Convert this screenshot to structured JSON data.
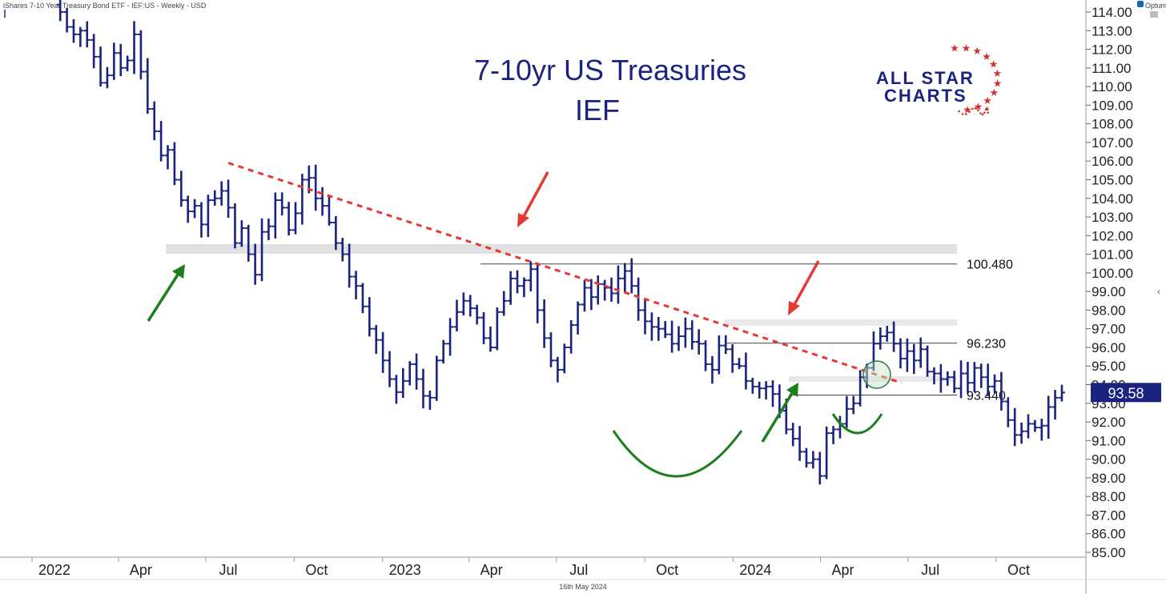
{
  "header": {
    "instrument": "iShares 7-10 Year Treasury Bond ETF - IEF:US - Weekly - USD",
    "vendor": "Optuma"
  },
  "footer": {
    "date": "16th May 2024"
  },
  "logo": {
    "line1": "ALL STAR",
    "line2": "CHARTS",
    "star_color": "#d32f2f",
    "text_color": "#1a237e"
  },
  "chart_data": {
    "type": "ohlc-bar",
    "title": "7-10yr US Treasuries",
    "subtitle": "IEF",
    "x_ticks": [
      "2022",
      "Apr",
      "Jul",
      "Oct",
      "2023",
      "Apr",
      "Jul",
      "Oct",
      "2024",
      "Apr",
      "Jul",
      "Oct"
    ],
    "y_ticks": [
      "114.00",
      "113.00",
      "112.00",
      "111.00",
      "110.00",
      "109.00",
      "108.00",
      "107.00",
      "106.00",
      "105.00",
      "104.00",
      "103.00",
      "102.00",
      "101.00",
      "100.00",
      "99.00",
      "98.00",
      "97.00",
      "96.00",
      "95.00",
      "94.00",
      "93.00",
      "92.00",
      "91.00",
      "90.00",
      "89.00",
      "88.00",
      "87.00",
      "86.00",
      "85.00"
    ],
    "ylim": [
      85,
      114
    ],
    "x_range": [
      "2022-01-01",
      "2024-10-01"
    ],
    "last_price": "93.58",
    "levels": [
      {
        "value": 100.48,
        "label": "100.480"
      },
      {
        "value": 96.23,
        "label": "96.230"
      },
      {
        "value": 93.44,
        "label": "93.440"
      }
    ],
    "trendline": {
      "start": [
        "2022-07-01",
        105.9
      ],
      "end": [
        "2024-06-01",
        94.1
      ]
    },
    "series": [
      {
        "values": [
          114.0,
          113.2,
          112.8,
          113.0,
          112.5,
          111.6,
          110.2,
          110.6,
          111.8,
          111.0,
          111.4,
          112.8,
          110.8,
          108.8,
          107.6,
          106.3,
          106.6,
          105.0,
          103.9,
          103.3,
          103.6,
          102.6,
          103.9,
          104.0,
          104.4,
          103.5,
          101.6,
          102.4,
          101.0,
          99.9,
          102.2,
          102.5,
          103.9,
          103.5,
          102.3,
          103.2,
          105.0,
          105.1,
          104.0,
          103.6,
          102.7,
          101.6,
          101.0,
          99.8,
          99.3,
          98.2,
          97.0,
          96.4,
          95.3,
          94.3,
          93.6,
          94.2,
          95.1,
          94.3,
          93.4,
          93.3,
          95.3,
          96.2,
          97.1,
          97.9,
          98.5,
          98.1,
          97.6,
          96.5,
          96.0,
          97.9,
          98.5,
          99.7,
          99.3,
          99.6,
          100.2,
          98.0,
          96.5,
          95.3,
          94.8,
          96.0,
          97.2,
          98.3,
          99.2,
          98.7,
          99.4,
          99.2,
          98.9,
          99.7,
          100.1,
          99.3,
          98.0,
          97.4,
          97.1,
          97.0,
          96.7,
          96.2,
          96.6,
          97.0,
          96.3,
          96.2,
          95.1,
          94.8,
          96.1,
          95.9,
          95.1,
          95.0,
          94.2,
          93.9,
          93.8,
          93.9,
          93.5,
          92.6,
          91.6,
          91.1,
          90.4,
          89.8,
          90.0,
          89.1,
          91.4,
          91.6,
          91.9,
          92.7,
          93.0,
          94.4,
          94.9,
          96.2,
          96.6,
          96.8,
          96.2,
          95.4,
          95.8,
          95.3,
          95.9,
          94.7,
          94.6,
          94.3,
          94.4,
          93.8,
          94.6,
          94.1,
          94.9,
          94.4,
          93.9,
          94.2,
          93.1,
          92.1,
          91.3,
          91.5,
          91.9,
          91.7,
          91.8,
          92.8,
          93.3,
          93.58
        ]
      }
    ]
  }
}
